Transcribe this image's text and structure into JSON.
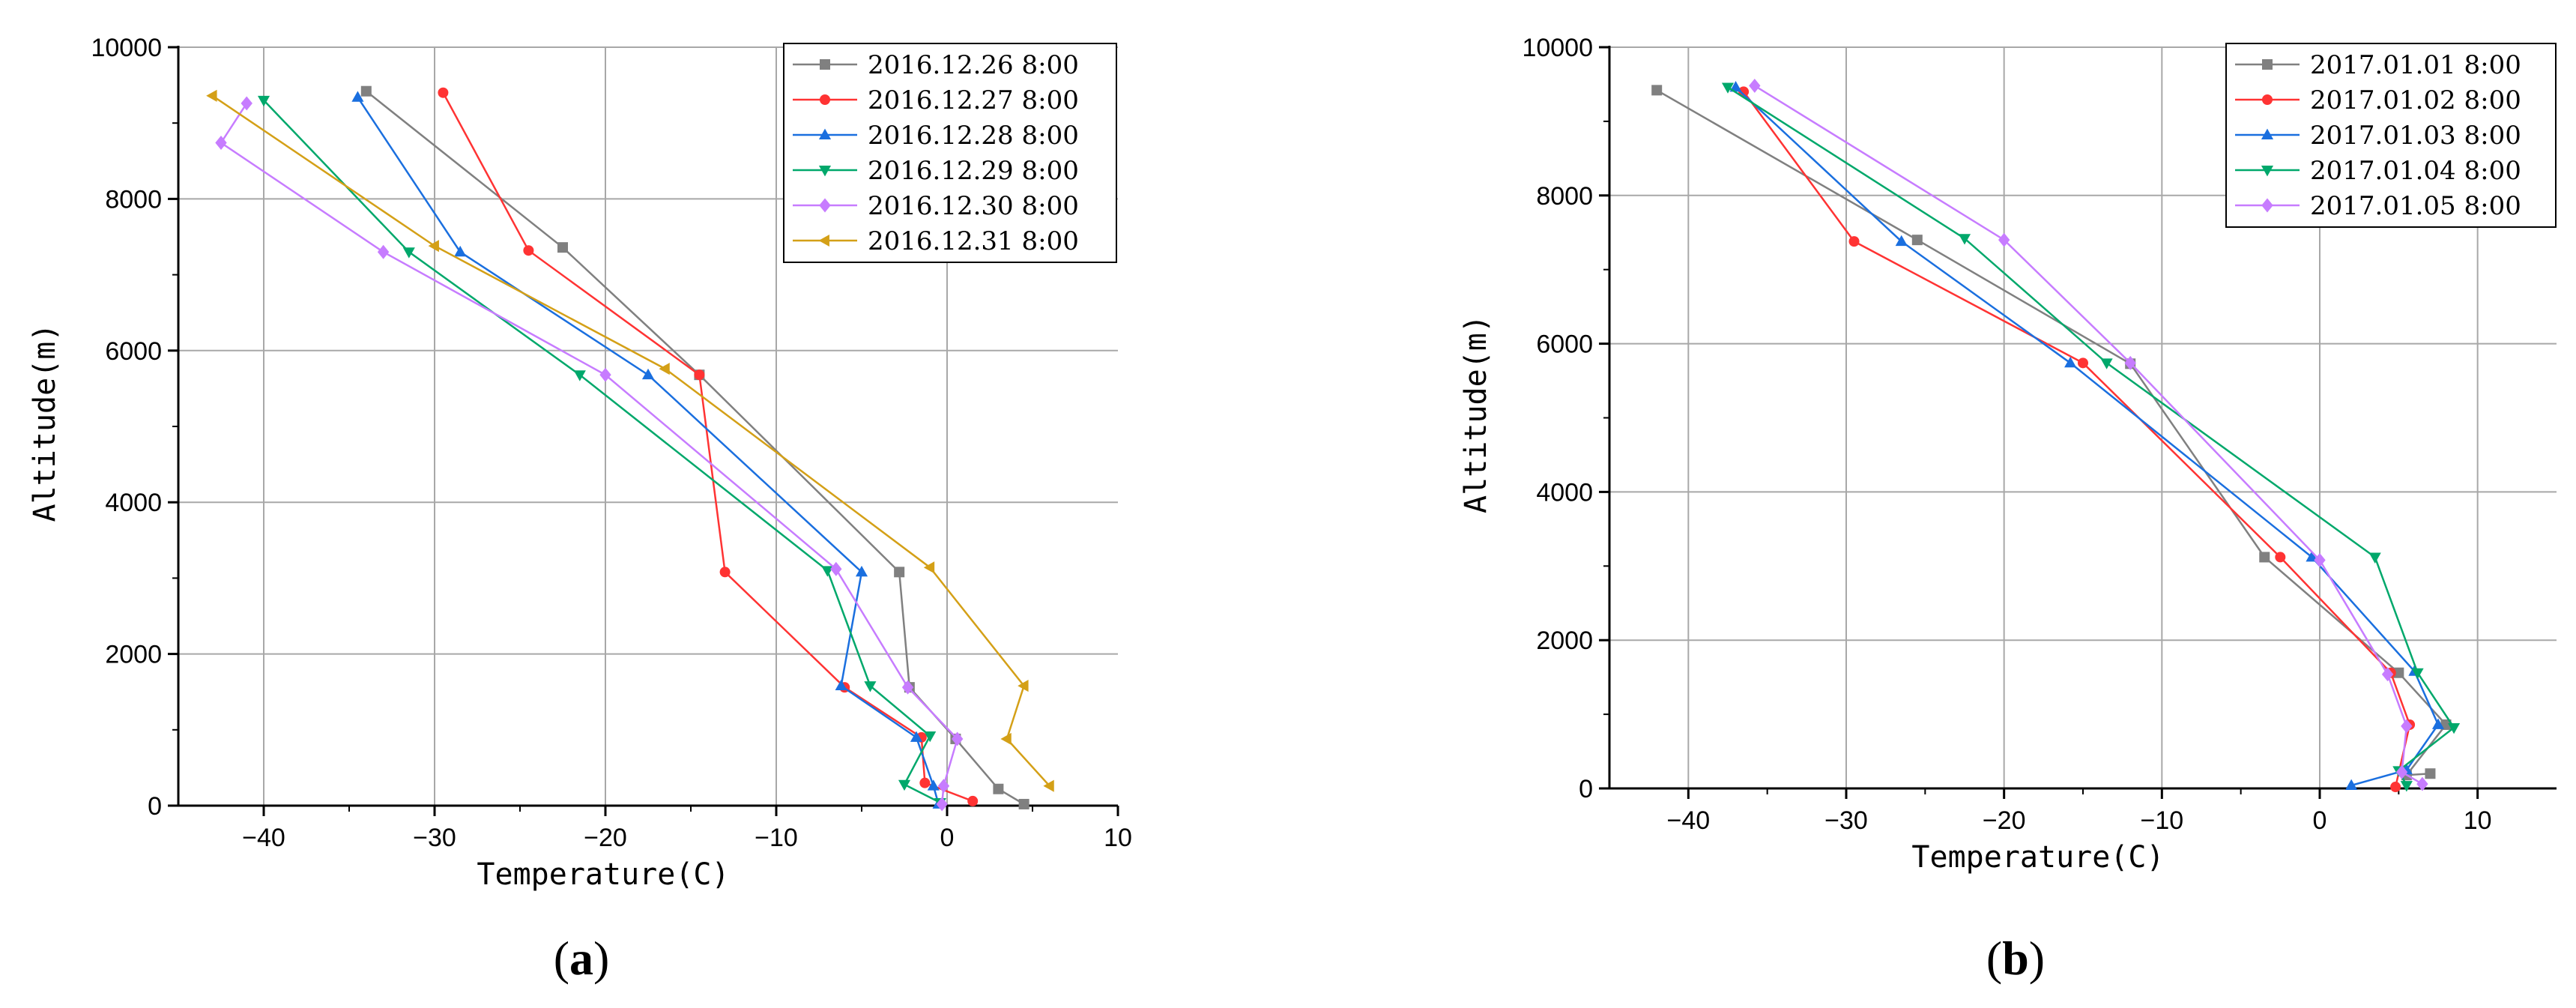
{
  "chart_data": [
    {
      "type": "line",
      "panel_label": {
        "open": "(",
        "letter": "a",
        "close": ")"
      },
      "xlabel": "Temperature(C)",
      "ylabel": "Altitude(m)",
      "xlim": [
        -45,
        10
      ],
      "ylim": [
        0,
        10000
      ],
      "xticks": [
        -40,
        -30,
        -20,
        -10,
        0,
        10
      ],
      "yticks": [
        0,
        2000,
        4000,
        6000,
        8000,
        10000
      ],
      "grid": true,
      "legend_position": "top-right",
      "series": [
        {
          "name": "2016.12.26 8:00",
          "color": "#808080",
          "marker": "square",
          "points": [
            [
              4.5,
              20
            ],
            [
              3,
              220
            ],
            [
              0.5,
              880
            ],
            [
              -2.2,
              1560
            ],
            [
              -2.8,
              3080
            ],
            [
              -14.5,
              5680
            ],
            [
              -22.5,
              7360
            ],
            [
              -34,
              9420
            ]
          ]
        },
        {
          "name": "2016.12.27 8:00",
          "color": "#ff3333",
          "marker": "circle",
          "points": [
            [
              1.5,
              60
            ],
            [
              -1.3,
              300
            ],
            [
              -1.5,
              900
            ],
            [
              -6,
              1560
            ],
            [
              -13,
              3080
            ],
            [
              -14.5,
              5680
            ],
            [
              -24.5,
              7320
            ],
            [
              -29.5,
              9400
            ]
          ]
        },
        {
          "name": "2016.12.28 8:00",
          "color": "#1a6fdf",
          "marker": "triangle-up",
          "points": [
            [
              -0.5,
              20
            ],
            [
              -0.8,
              260
            ],
            [
              -1.8,
              900
            ],
            [
              -6.2,
              1580
            ],
            [
              -5,
              3080
            ],
            [
              -17.5,
              5680
            ],
            [
              -28.5,
              7300
            ],
            [
              -34.5,
              9340
            ]
          ]
        },
        {
          "name": "2016.12.29 8:00",
          "color": "#00a86b",
          "marker": "triangle-down",
          "points": [
            [
              -0.4,
              40
            ],
            [
              -2.5,
              280
            ],
            [
              -1,
              920
            ],
            [
              -4.5,
              1580
            ],
            [
              -7,
              3100
            ],
            [
              -21.5,
              5680
            ],
            [
              -31.5,
              7300
            ],
            [
              -40,
              9300
            ]
          ]
        },
        {
          "name": "2016.12.30 8:00",
          "color": "#c77cff",
          "marker": "diamond",
          "points": [
            [
              -0.3,
              20
            ],
            [
              -0.2,
              260
            ],
            [
              0.6,
              880
            ],
            [
              -2.3,
              1560
            ],
            [
              -6.5,
              3120
            ],
            [
              -20,
              5680
            ],
            [
              -33,
              7300
            ],
            [
              -42.5,
              8740
            ],
            [
              -41,
              9260
            ]
          ]
        },
        {
          "name": "2016.12.31 8:00",
          "color": "#d4a017",
          "marker": "triangle-left",
          "points": [
            [
              6,
              260
            ],
            [
              3.5,
              880
            ],
            [
              4.5,
              1580
            ],
            [
              -1,
              3140
            ],
            [
              -16.5,
              5760
            ],
            [
              -30,
              7380
            ],
            [
              -43,
              9360
            ]
          ]
        }
      ]
    },
    {
      "type": "line",
      "panel_label": {
        "open": "(",
        "letter": "b",
        "close": ")"
      },
      "xlabel": "Temperature(C)",
      "ylabel": "Altitude(m)",
      "xlim": [
        -45,
        15
      ],
      "ylim": [
        0,
        10000
      ],
      "xticks": [
        -40,
        -30,
        -20,
        -10,
        0,
        10
      ],
      "yticks": [
        0,
        2000,
        4000,
        6000,
        8000,
        10000
      ],
      "grid": true,
      "legend_position": "top-right",
      "series": [
        {
          "name": "2017.01.01 8:00",
          "color": "#808080",
          "marker": "square",
          "points": [
            [
              7,
              200
            ],
            [
              5.5,
              180
            ],
            [
              8,
              860
            ],
            [
              5,
              1560
            ],
            [
              -3.5,
              3120
            ],
            [
              -12,
              5730
            ],
            [
              -25.5,
              7400
            ],
            [
              -42,
              9420
            ]
          ]
        },
        {
          "name": "2017.01.02 8:00",
          "color": "#ff3333",
          "marker": "circle",
          "points": [
            [
              4.8,
              20
            ],
            [
              5.7,
              860
            ],
            [
              4.5,
              1560
            ],
            [
              -2.5,
              3120
            ],
            [
              -15,
              5740
            ],
            [
              -29.5,
              7380
            ],
            [
              -36.5,
              9400
            ]
          ]
        },
        {
          "name": "2017.01.03 8:00",
          "color": "#1a6fdf",
          "marker": "triangle-up",
          "points": [
            [
              2,
              40
            ],
            [
              5.5,
              250
            ],
            [
              7.5,
              860
            ],
            [
              6,
              1580
            ],
            [
              -0.5,
              3120
            ],
            [
              -15.8,
              5740
            ],
            [
              -26.5,
              7380
            ],
            [
              -37,
              9460
            ]
          ]
        },
        {
          "name": "2017.01.04 8:00",
          "color": "#00a86b",
          "marker": "triangle-down",
          "points": [
            [
              5.5,
              40
            ],
            [
              5,
              240
            ],
            [
              8.5,
              820
            ],
            [
              6.2,
              1560
            ],
            [
              3.5,
              3120
            ],
            [
              -13.5,
              5740
            ],
            [
              -22.5,
              7420
            ],
            [
              -37.5,
              9460
            ]
          ]
        },
        {
          "name": "2017.01.05 8:00",
          "color": "#c77cff",
          "marker": "diamond",
          "points": [
            [
              6.5,
              60
            ],
            [
              5.2,
              220
            ],
            [
              5.5,
              840
            ],
            [
              4.3,
              1540
            ],
            [
              0,
              3080
            ],
            [
              -12,
              5740
            ],
            [
              -20,
              7400
            ],
            [
              -35.8,
              9480
            ]
          ]
        }
      ]
    }
  ]
}
